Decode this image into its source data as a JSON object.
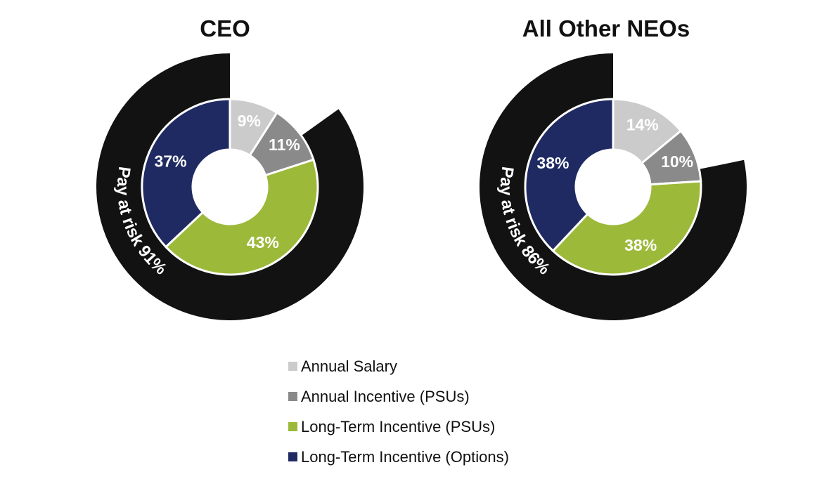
{
  "colors": {
    "annual_salary": "#cbcbcb",
    "annual_incentive": "#8a8a8a",
    "lti_psus": "#9cb93a",
    "lti_options": "#1f2a62",
    "at_risk_ring": "#121212"
  },
  "chart_data": [
    {
      "type": "pie",
      "subtype": "donut",
      "title": "CEO",
      "categories": [
        "Annual Salary",
        "Annual Incentive (PSUs)",
        "Long-Term Incentive (PSUs)",
        "Long-Term Incentive (Options)"
      ],
      "values": [
        9,
        11,
        43,
        37
      ],
      "value_labels": [
        "9%",
        "11%",
        "43%",
        "37%"
      ],
      "outer_ring": {
        "label": "Pay at risk 91%",
        "value": 91
      }
    },
    {
      "type": "pie",
      "subtype": "donut",
      "title": "All Other NEOs",
      "categories": [
        "Annual Salary",
        "Annual Incentive (PSUs)",
        "Long-Term Incentive (PSUs)",
        "Long-Term Incentive (Options)"
      ],
      "values": [
        14,
        10,
        38,
        38
      ],
      "value_labels": [
        "14%",
        "10%",
        "38%",
        "38%"
      ],
      "outer_ring": {
        "label": "Pay at risk 86%",
        "value": 86
      }
    }
  ],
  "legend": [
    {
      "label": "Annual Salary",
      "color": "#cbcbcb"
    },
    {
      "label": "Annual Incentive (PSUs)",
      "color": "#8a8a8a"
    },
    {
      "label": "Long-Term Incentive (PSUs)",
      "color": "#9cb93a"
    },
    {
      "label": "Long-Term Incentive (Options)",
      "color": "#1f2a62"
    }
  ]
}
